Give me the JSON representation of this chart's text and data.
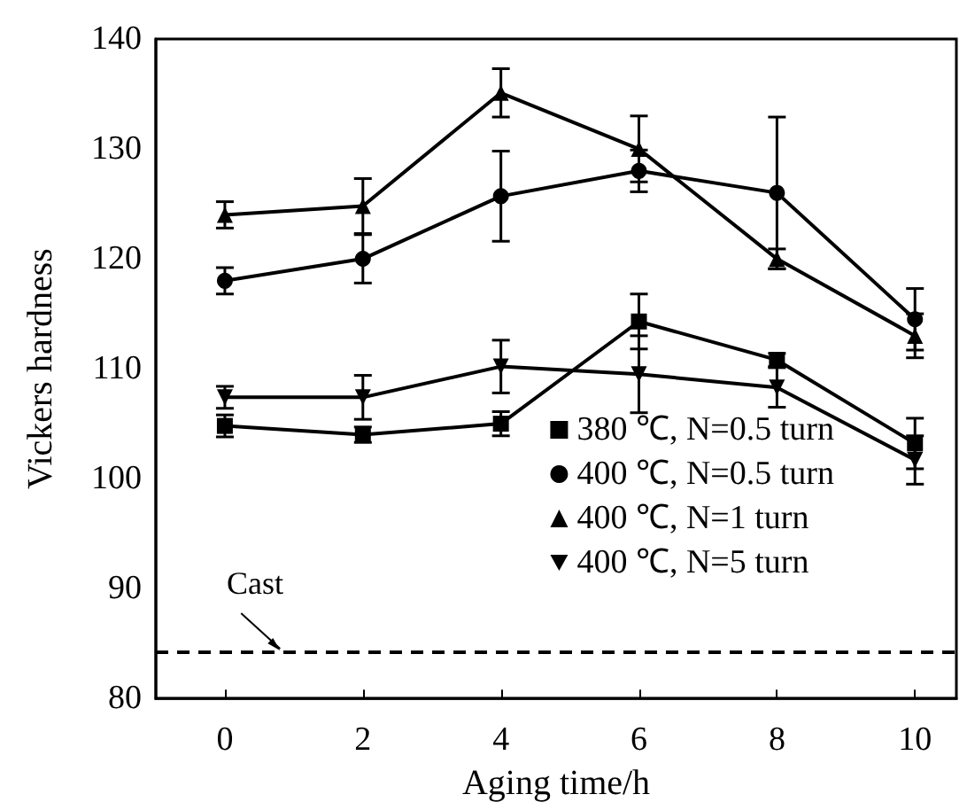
{
  "chart_data": {
    "type": "line",
    "xlabel": "Aging time/h",
    "ylabel": "Vickers hardness",
    "x": [
      0,
      2,
      4,
      6,
      8,
      10
    ],
    "xlim": [
      -1,
      10.6
    ],
    "xticks": [
      0,
      2,
      4,
      6,
      8,
      10
    ],
    "ylim": [
      80,
      140
    ],
    "yticks": [
      80,
      90,
      100,
      110,
      120,
      130,
      140
    ],
    "grid": false,
    "legend": "bottom right",
    "line_style": "solid",
    "series": [
      {
        "name": "380 ℃, N=0.5 turn",
        "color": "#000000",
        "marker": "square",
        "values": [
          104.8,
          104,
          105,
          114.3,
          110.8,
          103.2
        ],
        "errors": [
          1,
          0.7,
          1.1,
          2.5,
          0.6,
          2.3
        ]
      },
      {
        "name": "400 ℃, N=0.5 turn",
        "color": "#000000",
        "marker": "circle",
        "values": [
          118,
          120,
          125.7,
          128,
          126,
          114.5
        ],
        "errors": [
          1.2,
          2.2,
          4.1,
          1.9,
          6.9,
          2.8
        ]
      },
      {
        "name": "400 ℃, N=1 turn",
        "color": "#000000",
        "marker": "triangle",
        "values": [
          124,
          124.8,
          135.1,
          130,
          120,
          113
        ],
        "errors": [
          1.2,
          2.5,
          2.2,
          3,
          0.9,
          2
        ]
      },
      {
        "name": "400 ℃, N=5 turn",
        "color": "#000000",
        "marker": "triangle_down",
        "values": [
          107.4,
          107.4,
          110.2,
          109.5,
          108.3,
          101.7
        ],
        "errors": [
          1,
          2,
          2.4,
          3.5,
          1.8,
          2.2
        ]
      }
    ],
    "ref_lines": [
      {
        "axis": "y",
        "value": 84.2,
        "label": "Cast",
        "color": "#000000",
        "line_style": "dashed"
      }
    ]
  }
}
